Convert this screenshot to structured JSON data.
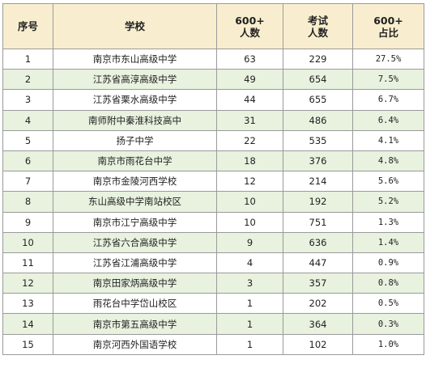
{
  "table": {
    "headers": {
      "seq": "序号",
      "school": "学校",
      "c600_line1": "600+",
      "c600_line2": "人数",
      "exam_line1": "考试",
      "exam_line2": "人数",
      "ratio_line1": "600+",
      "ratio_line2": "占比"
    },
    "rows": [
      {
        "seq": "1",
        "school": "南京市东山高级中学",
        "count600": "63",
        "exam": "229",
        "ratio": "27.5%"
      },
      {
        "seq": "2",
        "school": "江苏省高淳高级中学",
        "count600": "49",
        "exam": "654",
        "ratio": "7.5%"
      },
      {
        "seq": "3",
        "school": "江苏省栗水高级中学",
        "count600": "44",
        "exam": "655",
        "ratio": "6.7%"
      },
      {
        "seq": "4",
        "school": "南师附中秦淮科技高中",
        "count600": "31",
        "exam": "486",
        "ratio": "6.4%"
      },
      {
        "seq": "5",
        "school": "扬子中学",
        "count600": "22",
        "exam": "535",
        "ratio": "4.1%"
      },
      {
        "seq": "6",
        "school": "南京市雨花台中学",
        "count600": "18",
        "exam": "376",
        "ratio": "4.8%"
      },
      {
        "seq": "7",
        "school": "南京市金陵河西学校",
        "count600": "12",
        "exam": "214",
        "ratio": "5.6%"
      },
      {
        "seq": "8",
        "school": "东山高级中学南站校区",
        "count600": "10",
        "exam": "192",
        "ratio": "5.2%"
      },
      {
        "seq": "9",
        "school": "南京市江宁高级中学",
        "count600": "10",
        "exam": "751",
        "ratio": "1.3%"
      },
      {
        "seq": "10",
        "school": "江苏省六合高级中学",
        "count600": "9",
        "exam": "636",
        "ratio": "1.4%"
      },
      {
        "seq": "11",
        "school": "江苏省江浦高级中学",
        "count600": "4",
        "exam": "447",
        "ratio": "0.9%"
      },
      {
        "seq": "12",
        "school": "南京田家炳高级中学",
        "count600": "3",
        "exam": "357",
        "ratio": "0.8%"
      },
      {
        "seq": "13",
        "school": "雨花台中学岱山校区",
        "count600": "1",
        "exam": "202",
        "ratio": "0.5%"
      },
      {
        "seq": "14",
        "school": "南京市第五高级中学",
        "count600": "1",
        "exam": "364",
        "ratio": "0.3%"
      },
      {
        "seq": "15",
        "school": "南京河西外国语学校",
        "count600": "1",
        "exam": "102",
        "ratio": "1.0%"
      }
    ]
  },
  "colors": {
    "header_bg": "#f8eecf",
    "alt_row_bg": "#e8f2df",
    "border": "#9a9a9a"
  }
}
